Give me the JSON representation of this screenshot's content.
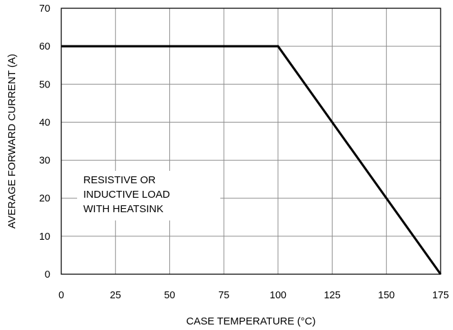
{
  "chart_data": {
    "type": "line",
    "xlabel": "CASE TEMPERATURE (°C)",
    "ylabel": "AVERAGE FORWARD CURRENT (A)",
    "xlim": [
      0,
      175
    ],
    "ylim": [
      0,
      70
    ],
    "x_ticks": [
      0,
      25,
      50,
      75,
      100,
      125,
      150,
      175
    ],
    "y_ticks": [
      0,
      10,
      20,
      30,
      40,
      50,
      60,
      70
    ],
    "grid": true,
    "series": [
      {
        "x": [
          0,
          100,
          175
        ],
        "y": [
          60,
          60,
          0
        ],
        "color": "#000000"
      }
    ],
    "annotation": {
      "lines": [
        "RESISTIVE OR",
        "INDUCTIVE LOAD",
        "WITH HEATSINK"
      ]
    }
  }
}
